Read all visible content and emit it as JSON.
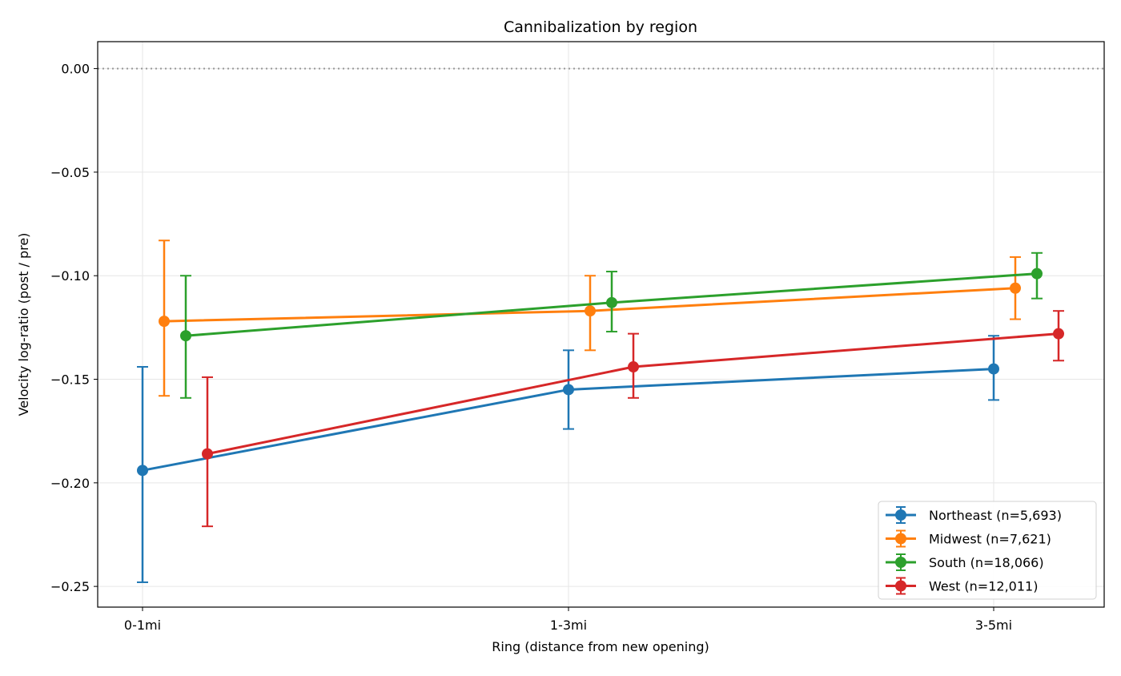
{
  "chart_data": {
    "type": "line",
    "title": "Cannibalization by region",
    "xlabel": "Ring (distance from new opening)",
    "ylabel": "Velocity log-ratio (post / pre)",
    "categories": [
      "0-1mi",
      "1-3mi",
      "3-5mi"
    ],
    "ylim": [
      -0.26,
      0.013
    ],
    "yticks": [
      0.0,
      -0.05,
      -0.1,
      -0.15,
      -0.2,
      -0.25
    ],
    "ytick_labels": [
      "0.00",
      "−0.05",
      "−0.10",
      "−0.15",
      "−0.20",
      "−0.25"
    ],
    "reference_line": 0.0,
    "grid": true,
    "legend_position": "lower-right",
    "error_bars": true,
    "series": [
      {
        "name": "Northeast (n=5,693)",
        "color": "#1f77b4",
        "values": [
          -0.194,
          -0.155,
          -0.145
        ],
        "err_low": [
          -0.248,
          -0.174,
          -0.16
        ],
        "err_high": [
          -0.144,
          -0.136,
          -0.129
        ]
      },
      {
        "name": "Midwest (n=7,621)",
        "color": "#ff7f0e",
        "values": [
          -0.122,
          -0.117,
          -0.106
        ],
        "err_low": [
          -0.158,
          -0.136,
          -0.121
        ],
        "err_high": [
          -0.083,
          -0.1,
          -0.091
        ]
      },
      {
        "name": "South (n=18,066)",
        "color": "#2ca02c",
        "values": [
          -0.129,
          -0.113,
          -0.099
        ],
        "err_low": [
          -0.159,
          -0.127,
          -0.111
        ],
        "err_high": [
          -0.1,
          -0.098,
          -0.089
        ]
      },
      {
        "name": "West (n=12,011)",
        "color": "#d62728",
        "values": [
          -0.186,
          -0.144,
          -0.128
        ],
        "err_low": [
          -0.221,
          -0.159,
          -0.141
        ],
        "err_high": [
          -0.149,
          -0.128,
          -0.117
        ]
      }
    ]
  }
}
